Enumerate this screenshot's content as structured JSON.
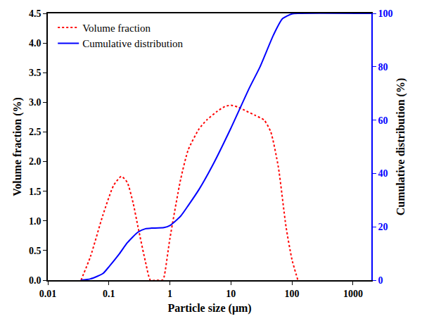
{
  "chart_data": {
    "type": "line",
    "xlabel": "Particle size (μm)",
    "ylabel": "Volume fraction (%)",
    "y2label": "Cumulative distribution (%)",
    "log": "x",
    "grid": false,
    "legend": "top-left",
    "xlim": [
      0.01,
      2000
    ],
    "xticks": [
      0.01,
      0.1,
      1,
      10,
      100,
      1000
    ],
    "ylim": [
      0,
      4.5
    ],
    "yticks": [
      {
        "value": 0,
        "label": "0.0"
      },
      {
        "value": 0.5,
        "label": "0.5"
      },
      {
        "value": 1,
        "label": "1.0"
      },
      {
        "value": 1.5,
        "label": "1.5"
      },
      {
        "value": 2,
        "label": "2.0"
      },
      {
        "value": 2.5,
        "label": "2.5"
      },
      {
        "value": 3,
        "label": "3.0"
      },
      {
        "value": 3.5,
        "label": "3.5"
      },
      {
        "value": 4,
        "label": "4.0"
      },
      {
        "value": 4.5,
        "label": "4.5"
      }
    ],
    "y2lim": [
      0,
      100
    ],
    "y2ticks": [
      0,
      20,
      40,
      60,
      80,
      100
    ],
    "series": [
      {
        "name": "Volume fraction",
        "color": "#ff0000",
        "line_style": "dot",
        "x": [
          0.035,
          0.05,
          0.08,
          0.12,
          0.16,
          0.2,
          0.25,
          0.3,
          0.4,
          0.48,
          0.6,
          0.75,
          0.8,
          1,
          1.5,
          2,
          3,
          4,
          6,
          8,
          10,
          13,
          18,
          25,
          35,
          45,
          60,
          80,
          100,
          125
        ],
        "values": [
          0,
          0.4,
          1.1,
          1.6,
          1.75,
          1.65,
          1.3,
          0.9,
          0.3,
          0,
          0,
          0,
          0.05,
          0.7,
          1.7,
          2.2,
          2.55,
          2.7,
          2.85,
          2.93,
          2.95,
          2.92,
          2.85,
          2.78,
          2.7,
          2.5,
          1.9,
          0.9,
          0.35,
          0
        ]
      },
      {
        "name": "Cumulative distribution",
        "color": "#0000ff",
        "line_style": "solid",
        "axis": "y2",
        "x": [
          0.035,
          0.05,
          0.08,
          0.1,
          0.15,
          0.2,
          0.3,
          0.4,
          0.5,
          0.8,
          1,
          1.5,
          2,
          3,
          5,
          10,
          20,
          30,
          50,
          70,
          100,
          130,
          2000
        ],
        "values": [
          0,
          0.5,
          2.5,
          5,
          10,
          14,
          18,
          19.3,
          19.5,
          19.7,
          20.5,
          24,
          28,
          34,
          43,
          57,
          72,
          80,
          92,
          98,
          99.8,
          100,
          100
        ]
      }
    ]
  }
}
